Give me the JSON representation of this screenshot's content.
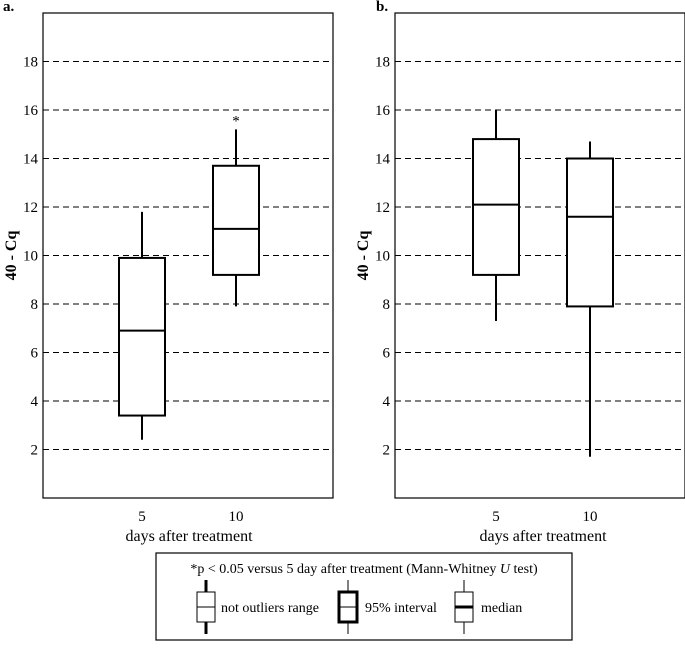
{
  "chart_data": [
    {
      "panel": "a.",
      "type": "box",
      "ylabel": "40 - Cq",
      "xlabel": "days after treatment",
      "categories": [
        "5",
        "10"
      ],
      "ylim": [
        0,
        20
      ],
      "yticks": [
        "2",
        "4",
        "6",
        "8",
        "10",
        "12",
        "14",
        "16",
        "18"
      ],
      "grid": true,
      "boxes": [
        {
          "category": "5",
          "whisker_low": 2.4,
          "q1": 3.4,
          "median": 6.9,
          "q3": 9.9,
          "whisker_high": 11.8,
          "annotation": ""
        },
        {
          "category": "10",
          "whisker_low": 7.9,
          "q1": 9.2,
          "median": 11.1,
          "q3": 13.7,
          "whisker_high": 15.2,
          "annotation": "*"
        }
      ]
    },
    {
      "panel": "b.",
      "type": "box",
      "ylabel": "40 - Cq",
      "xlabel": "days after treatment",
      "categories": [
        "5",
        "10"
      ],
      "ylim": [
        0,
        20
      ],
      "yticks": [
        "2",
        "4",
        "6",
        "8",
        "10",
        "12",
        "14",
        "16",
        "18"
      ],
      "grid": true,
      "boxes": [
        {
          "category": "5",
          "whisker_low": 7.3,
          "q1": 9.2,
          "median": 12.1,
          "q3": 14.8,
          "whisker_high": 16.0,
          "annotation": ""
        },
        {
          "category": "10",
          "whisker_low": 1.7,
          "q1": 7.9,
          "median": 11.6,
          "q3": 14.0,
          "whisker_high": 14.7,
          "annotation": ""
        }
      ]
    }
  ],
  "legend": {
    "note_prefix": "*p < 0.05 versus 5 day after treatment (Mann-Whitney ",
    "note_italic": "U",
    "note_suffix": " test)",
    "items": [
      "not outliers range",
      "95% interval",
      "median"
    ]
  }
}
